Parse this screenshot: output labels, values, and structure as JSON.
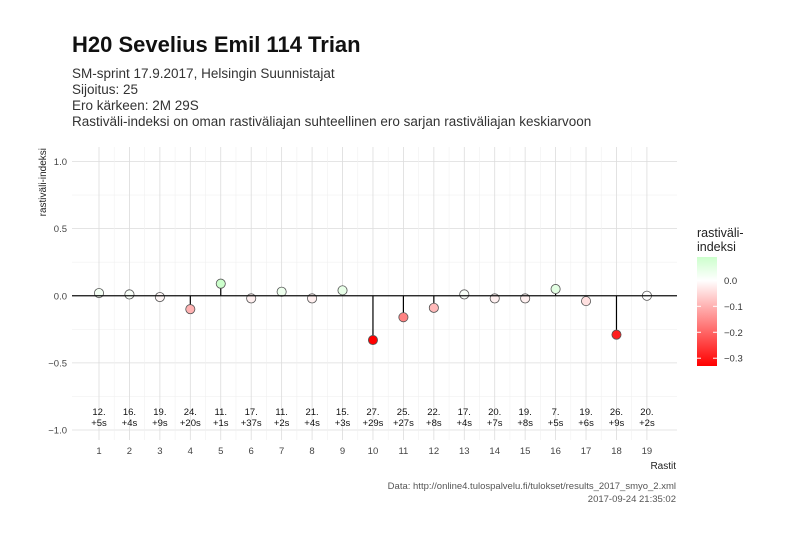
{
  "title": "H20 Sevelius Emil 114 Trian",
  "subtitle_lines": [
    "SM-sprint 17.9.2017, Helsingin Suunnistajat",
    "Sijoitus: 25",
    "Ero kärkeen: 2M 29S",
    "Rastiväli-indeksi on oman rastiväliajan suhteellinen ero sarjan rastiväliajan keskiarvoon"
  ],
  "caption": {
    "source": "Data: http://online4.tulospalvelu.fi/tulokset/results_2017_smyo_2.xml",
    "timestamp": "2017-09-24 21:35:02"
  },
  "colors": {
    "low": "#ff0000",
    "mid": "#ffffff",
    "high": "#ccffcc",
    "stem": "#000000"
  },
  "chart_data": {
    "type": "lollipop",
    "xlabel": "Rastit",
    "ylabel": "rastiväli-indeksi",
    "ylim": [
      -1.0,
      1.0
    ],
    "yticks": [
      -1.0,
      -0.5,
      0.0,
      0.5,
      1.0
    ],
    "ytick_labels": [
      "−1.0",
      "−0.5",
      "0.0",
      "0.5",
      "1.0"
    ],
    "grid": true,
    "x": [
      1,
      2,
      3,
      4,
      5,
      6,
      7,
      8,
      9,
      10,
      11,
      12,
      13,
      14,
      15,
      16,
      17,
      18,
      19
    ],
    "values": [
      0.02,
      0.01,
      -0.01,
      -0.1,
      0.09,
      -0.02,
      0.03,
      -0.02,
      0.04,
      -0.33,
      -0.16,
      -0.09,
      0.01,
      -0.02,
      -0.02,
      0.05,
      -0.04,
      -0.29,
      0.0
    ],
    "rank_labels": [
      "12.",
      "16.",
      "19.",
      "24.",
      "11.",
      "17.",
      "11.",
      "21.",
      "15.",
      "27.",
      "25.",
      "22.",
      "17.",
      "20.",
      "19.",
      "7.",
      "19.",
      "26.",
      "20."
    ],
    "diff_labels": [
      "+5s",
      "+4s",
      "+9s",
      "+20s",
      "+1s",
      "+37s",
      "+2s",
      "+4s",
      "+3s",
      "+29s",
      "+27s",
      "+8s",
      "+4s",
      "+7s",
      "+8s",
      "+5s",
      "+6s",
      "+9s",
      "+2s"
    ],
    "legend": {
      "title_lines": [
        "rastiväli-",
        "indeksi"
      ],
      "ticks": [
        0.0,
        -0.1,
        -0.2,
        -0.3
      ],
      "tick_labels": [
        "0.0",
        "−0.1",
        "−0.2",
        "−0.3"
      ],
      "range": [
        -0.33,
        0.09
      ],
      "placement": "right"
    }
  }
}
